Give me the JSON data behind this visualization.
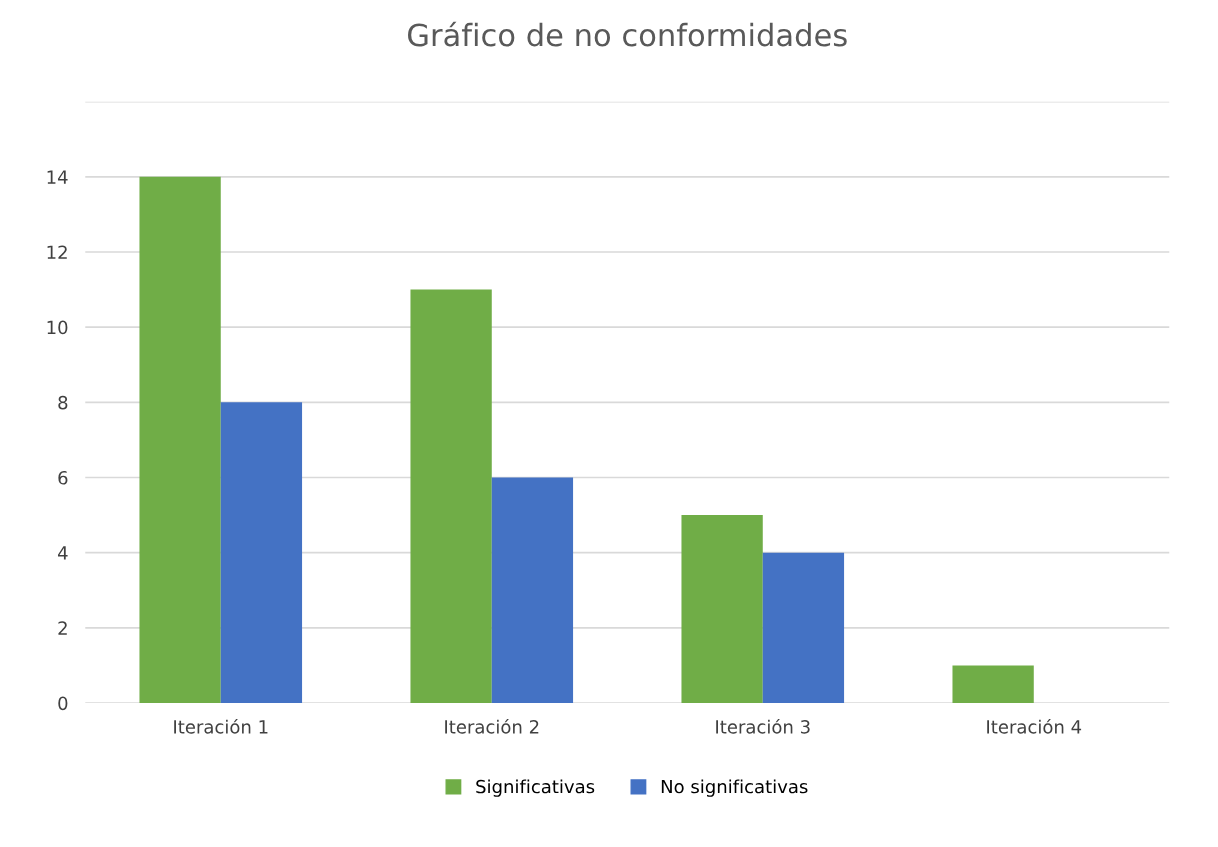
{
  "chart_data": {
    "type": "bar",
    "title": "Gráfico de no conformidades",
    "categories": [
      "Iteración 1",
      "Iteración 2",
      "Iteración 3",
      "Iteración 4"
    ],
    "series": [
      {
        "name": "Significativas",
        "color": "#70ad47",
        "values": [
          14,
          11,
          5,
          1
        ]
      },
      {
        "name": "No significativas",
        "color": "#4472c4",
        "values": [
          8,
          6,
          4,
          0
        ]
      }
    ],
    "ylim": [
      0,
      16
    ],
    "yticks": [
      0,
      2,
      4,
      6,
      8,
      10,
      12,
      14,
      {
        "value": 16,
        "label": null
      }
    ],
    "grid": "y",
    "legend": "bottom"
  }
}
